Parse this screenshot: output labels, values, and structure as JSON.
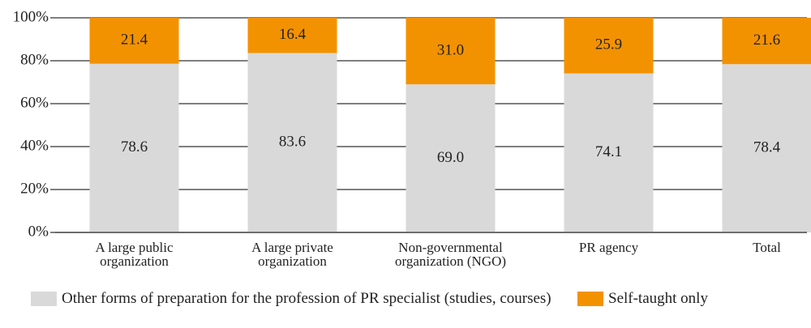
{
  "chart_data": {
    "type": "stacked_bar",
    "categories": [
      "A large public organization",
      "A large private organization",
      "Non-governmental organization (NGO)",
      "PR agency",
      "Total"
    ],
    "series": [
      {
        "name": "Other forms of preparation for the profession of PR specialist (studies, courses)",
        "color": "#d9d9d9",
        "values": [
          78.6,
          83.6,
          69.0,
          74.1,
          78.4
        ],
        "value_labels": [
          "78.6",
          "83.6",
          "69.0",
          "74.1",
          "78.4"
        ]
      },
      {
        "name": "Self-taught only",
        "color": "#f39200",
        "values": [
          21.4,
          16.4,
          31.0,
          25.9,
          21.6
        ],
        "value_labels": [
          "21.4",
          "16.4",
          "31.0",
          "25.9",
          "21.6"
        ]
      }
    ],
    "ylim": [
      0,
      100
    ],
    "yticks": [
      {
        "value": 0,
        "label": "0%"
      },
      {
        "value": 20,
        "label": "20%"
      },
      {
        "value": 40,
        "label": "40%"
      },
      {
        "value": 60,
        "label": "60%"
      },
      {
        "value": 80,
        "label": "80%"
      },
      {
        "value": 100,
        "label": "100%"
      }
    ],
    "grid": true
  }
}
